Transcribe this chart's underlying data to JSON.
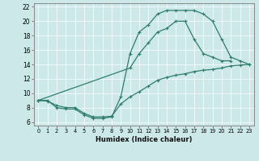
{
  "title": "",
  "xlabel": "Humidex (Indice chaleur)",
  "bg_color": "#cce8e8",
  "line_color": "#2e7d6e",
  "xlim": [
    -0.5,
    23.5
  ],
  "ylim": [
    5.5,
    22.5
  ],
  "xticks": [
    0,
    1,
    2,
    3,
    4,
    5,
    6,
    7,
    8,
    9,
    10,
    11,
    12,
    13,
    14,
    15,
    16,
    17,
    18,
    19,
    20,
    21,
    22,
    23
  ],
  "yticks": [
    6,
    8,
    10,
    12,
    14,
    16,
    18,
    20,
    22
  ],
  "curve_top": {
    "x": [
      0,
      1,
      2,
      3,
      4,
      5,
      6,
      7,
      8,
      9,
      10,
      11,
      12,
      13,
      14,
      15,
      16,
      17,
      18,
      19,
      20,
      21,
      22,
      23
    ],
    "y": [
      9,
      9,
      8,
      7.8,
      7.8,
      7,
      6.5,
      6.5,
      6.7,
      9.5,
      15.5,
      18.5,
      19.5,
      21,
      21.5,
      21.5,
      21.5,
      21.5,
      21,
      20,
      17.5,
      15,
      14.5,
      14
    ]
  },
  "curve_mid": {
    "x": [
      0,
      10,
      11,
      12,
      13,
      14,
      15,
      16,
      17,
      18,
      19,
      20,
      21
    ],
    "y": [
      9,
      13.5,
      15.5,
      17,
      18.5,
      19,
      20,
      20,
      17.5,
      15.5,
      15,
      14.5,
      14.5
    ]
  },
  "curve_bot": {
    "x": [
      0,
      1,
      2,
      3,
      4,
      5,
      6,
      7,
      8,
      9,
      10,
      11,
      12,
      13,
      14,
      15,
      16,
      17,
      18,
      19,
      20,
      21,
      22,
      23
    ],
    "y": [
      9,
      8.9,
      8.3,
      8,
      8,
      7.2,
      6.7,
      6.7,
      6.8,
      8.5,
      9.5,
      10.2,
      11,
      11.8,
      12.2,
      12.5,
      12.7,
      13,
      13.2,
      13.3,
      13.5,
      13.8,
      13.9,
      14
    ]
  }
}
